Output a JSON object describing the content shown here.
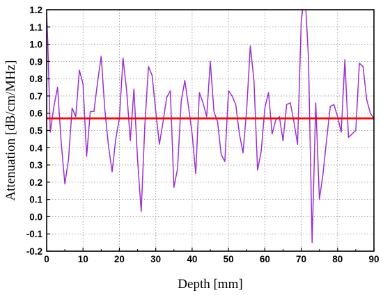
{
  "chart_data": {
    "type": "line",
    "title": "",
    "xlabel": "Depth [mm]",
    "ylabel": "Attenuation [dB/cm/MHz]",
    "xlim": [
      0,
      90
    ],
    "ylim": [
      -0.2,
      1.2
    ],
    "grid": true,
    "legend": "none",
    "x_ticks": [
      0,
      10,
      20,
      30,
      40,
      50,
      60,
      70,
      80,
      90
    ],
    "y_ticks": [
      -0.2,
      -0.1,
      0.0,
      0.1,
      0.2,
      0.3,
      0.4,
      0.5,
      0.6,
      0.7,
      0.8,
      0.9,
      1.0,
      1.1,
      1.2
    ],
    "x_tick_labels": [
      "0",
      "10",
      "20",
      "30",
      "40",
      "50",
      "60",
      "70",
      "80",
      "90"
    ],
    "y_tick_labels": [
      "-0.2",
      "-0.1",
      "0.0",
      "0.1",
      "0.2",
      "0.3",
      "0.4",
      "0.5",
      "0.6",
      "0.7",
      "0.8",
      "0.9",
      "1.0",
      "1.1",
      "1.2"
    ],
    "series": [
      {
        "color": "#9b30d0",
        "x": [
          0,
          0.3,
          1,
          2,
          3,
          4,
          5,
          6,
          7,
          8,
          9,
          10,
          11,
          12,
          13,
          14,
          15,
          16,
          17,
          18,
          19,
          20,
          21,
          22,
          23,
          24,
          25,
          26,
          27,
          28,
          29,
          30,
          31,
          32,
          33,
          34,
          35,
          36,
          37,
          38,
          39,
          40,
          41,
          42,
          43,
          44,
          45,
          46,
          47,
          48,
          49,
          50,
          51,
          52,
          53,
          54,
          55,
          56,
          57,
          58,
          59,
          60,
          61,
          62,
          63,
          64,
          65,
          66,
          67,
          68,
          69,
          70,
          71,
          72,
          73,
          74,
          75,
          76,
          77,
          78,
          79,
          80,
          81,
          82,
          83,
          84,
          85,
          86,
          87,
          88,
          89,
          90
        ],
        "values": [
          1.18,
          1.02,
          0.49,
          0.64,
          0.75,
          0.43,
          0.19,
          0.33,
          0.63,
          0.58,
          0.85,
          0.77,
          0.35,
          0.61,
          0.61,
          0.78,
          0.93,
          0.62,
          0.41,
          0.26,
          0.45,
          0.57,
          0.92,
          0.73,
          0.44,
          0.74,
          0.33,
          0.03,
          0.53,
          0.87,
          0.82,
          0.61,
          0.42,
          0.55,
          0.69,
          0.73,
          0.17,
          0.28,
          0.67,
          0.79,
          0.64,
          0.48,
          0.25,
          0.72,
          0.66,
          0.58,
          0.9,
          0.61,
          0.55,
          0.36,
          0.32,
          0.73,
          0.7,
          0.65,
          0.48,
          0.37,
          0.62,
          0.99,
          0.79,
          0.27,
          0.38,
          0.63,
          0.72,
          0.48,
          0.56,
          0.58,
          0.44,
          0.65,
          0.66,
          0.55,
          0.42,
          1.13,
          1.31,
          0.92,
          -0.15,
          0.66,
          0.1,
          0.25,
          0.45,
          0.64,
          0.65,
          0.58,
          0.49,
          0.91,
          0.46,
          0.48,
          0.5,
          0.89,
          0.87,
          0.68,
          0.6,
          0.57
        ]
      },
      {
        "color": "#ff0000",
        "x": [
          0,
          90
        ],
        "values": [
          0.57,
          0.57
        ]
      }
    ]
  }
}
